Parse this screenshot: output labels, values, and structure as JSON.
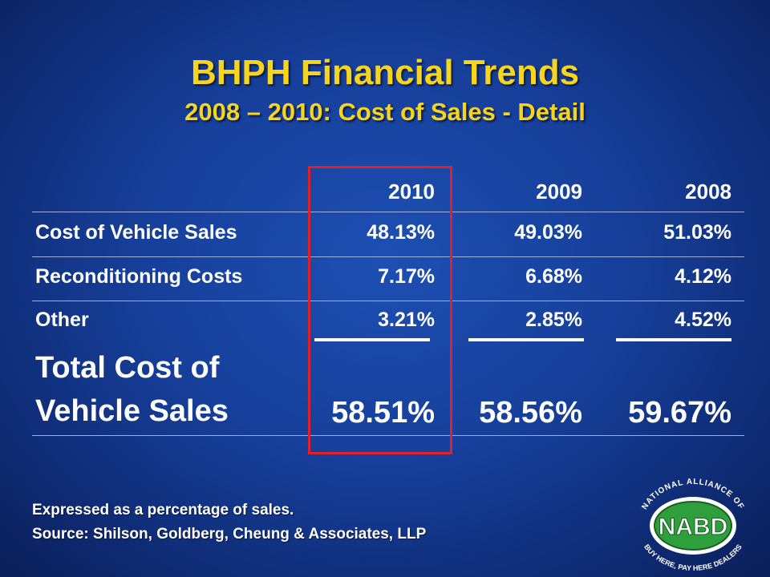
{
  "title": "BHPH Financial Trends",
  "subtitle": "2008 – 2010: Cost of Sales - Detail",
  "table": {
    "columns": [
      "2010",
      "2009",
      "2008"
    ],
    "rows": [
      {
        "label": "Cost of Vehicle Sales",
        "values": [
          "48.13%",
          "49.03%",
          "51.03%"
        ]
      },
      {
        "label": "Reconditioning Costs",
        "values": [
          "7.17%",
          "6.68%",
          "4.12%"
        ]
      },
      {
        "label": "Other",
        "values": [
          "3.21%",
          "2.85%",
          "4.52%"
        ]
      }
    ],
    "total": {
      "label_line1": "Total Cost of",
      "label_line2": "Vehicle Sales",
      "values": [
        "58.51%",
        "58.56%",
        "59.67%"
      ]
    }
  },
  "notes": {
    "line1": "Expressed as a percentage of sales.",
    "line2": "Source: Shilson, Goldberg, Cheung & Associates, LLP"
  },
  "logo": {
    "center_text": "NABD",
    "ring_top": "NATIONAL ALLIANCE OF",
    "ring_bottom": "BUY HERE, PAY HERE DEALERS"
  },
  "colors": {
    "title": "#f7d51d",
    "highlight": "#e0202a",
    "logo_green": "#2f9e3c"
  }
}
